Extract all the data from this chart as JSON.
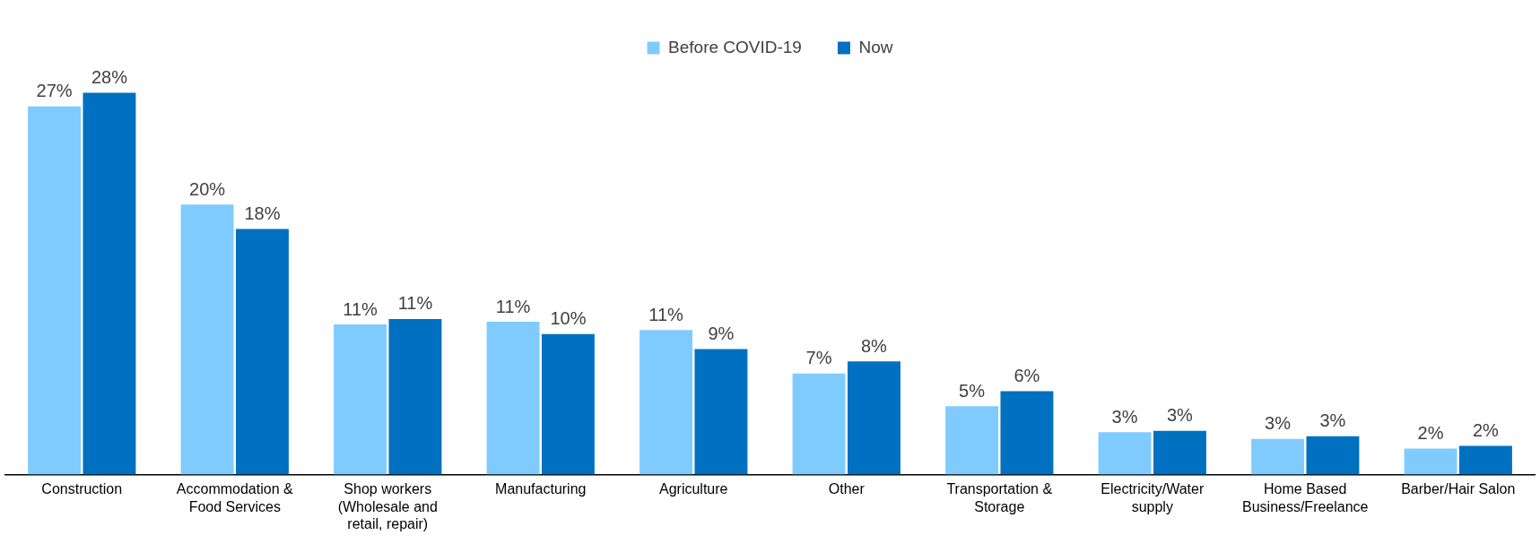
{
  "chart_data": {
    "type": "bar",
    "categories": [
      "Construction",
      "Accommodation &\nFood Services",
      "Shop workers\n(Wholesale and\nretail, repair)",
      "Manufacturing",
      "Agriculture",
      "Other",
      "Transportation &\nStorage",
      "Electricity/Water\nsupply",
      "Home Based\nBusiness/Freelance",
      "Barber/Hair Salon"
    ],
    "series": [
      {
        "name": "Before COVID-19",
        "color": "#7fcbff",
        "values": [
          27,
          19.8,
          11,
          11.2,
          10.6,
          7.4,
          5,
          3.1,
          2.6,
          1.9
        ],
        "value_labels": [
          "27%",
          "20%",
          "11%",
          "11%",
          "11%",
          "7%",
          "5%",
          "3%",
          "3%",
          "2%"
        ]
      },
      {
        "name": "Now",
        "color": "#0070c0",
        "values": [
          28,
          18,
          11.4,
          10.3,
          9.2,
          8.3,
          6.1,
          3.2,
          2.8,
          2.1
        ],
        "value_labels": [
          "28%",
          "18%",
          "11%",
          "10%",
          "9%",
          "8%",
          "6%",
          "3%",
          "3%",
          "2%"
        ]
      }
    ],
    "grid": false,
    "legend": "top"
  }
}
